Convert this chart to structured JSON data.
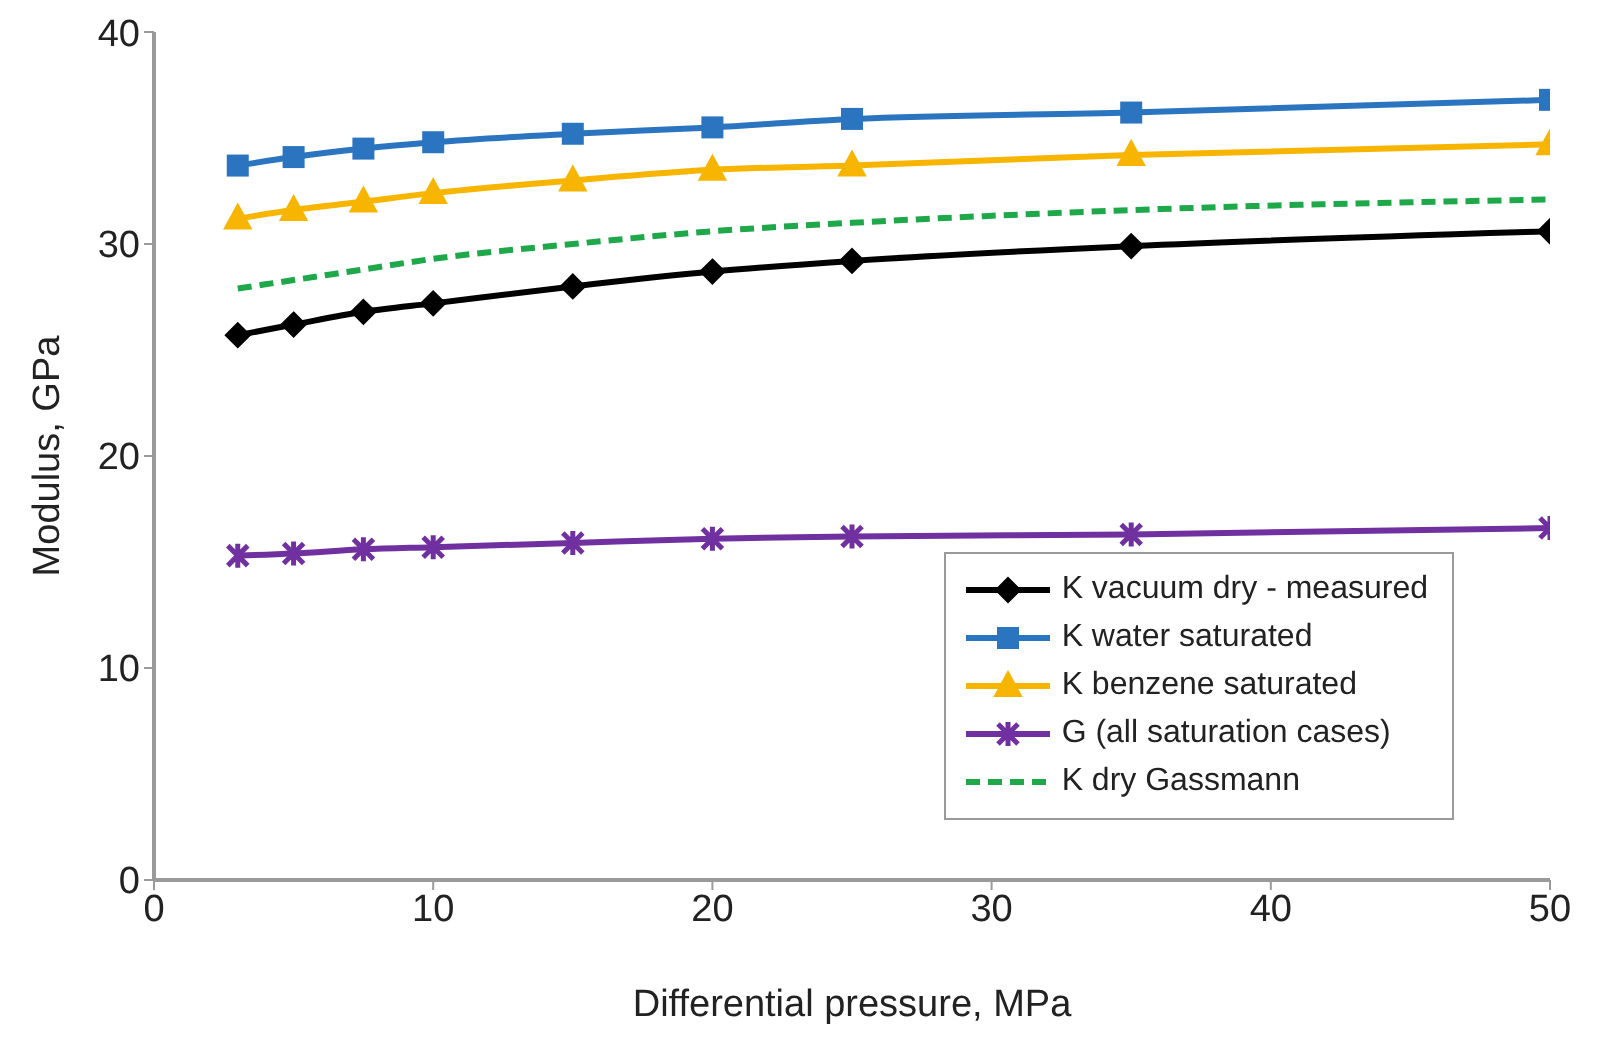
{
  "chart_data": {
    "type": "line",
    "xlabel": "Differential pressure, MPa",
    "ylabel": "Modulus, GPa",
    "x": [
      3,
      5,
      7.5,
      10,
      15,
      20,
      25,
      35,
      50
    ],
    "xlim": [
      0,
      50
    ],
    "xticks": [
      0,
      10,
      20,
      30,
      40,
      50
    ],
    "ylim": [
      0,
      40
    ],
    "yticks": [
      0,
      10,
      20,
      30,
      40
    ],
    "legend": "bottom right",
    "series": [
      {
        "name": "K vacuum dry - measured",
        "color": "#000000",
        "marker": "diamond",
        "values": [
          25.7,
          26.2,
          26.8,
          27.2,
          28.0,
          28.7,
          29.2,
          29.9,
          30.6
        ]
      },
      {
        "name": "K water saturated",
        "color": "#2b74c0",
        "marker": "square",
        "values": [
          33.7,
          34.1,
          34.5,
          34.8,
          35.2,
          35.5,
          35.9,
          36.2,
          36.8
        ]
      },
      {
        "name": "K benzene saturated",
        "color": "#f7b500",
        "marker": "triangle",
        "values": [
          31.2,
          31.6,
          32.0,
          32.4,
          33.0,
          33.5,
          33.7,
          34.2,
          34.7
        ]
      },
      {
        "name": "G (all saturation cases)",
        "color": "#7030a0",
        "marker": "cross",
        "values": [
          15.3,
          15.4,
          15.6,
          15.7,
          15.9,
          16.1,
          16.2,
          16.3,
          16.6
        ]
      },
      {
        "name": "K dry Gassmann",
        "color": "#1ea84a",
        "marker": "none",
        "line_style": "dashed",
        "values": [
          27.9,
          28.3,
          28.8,
          29.3,
          30.0,
          30.6,
          31.0,
          31.6,
          32.1
        ]
      }
    ]
  }
}
